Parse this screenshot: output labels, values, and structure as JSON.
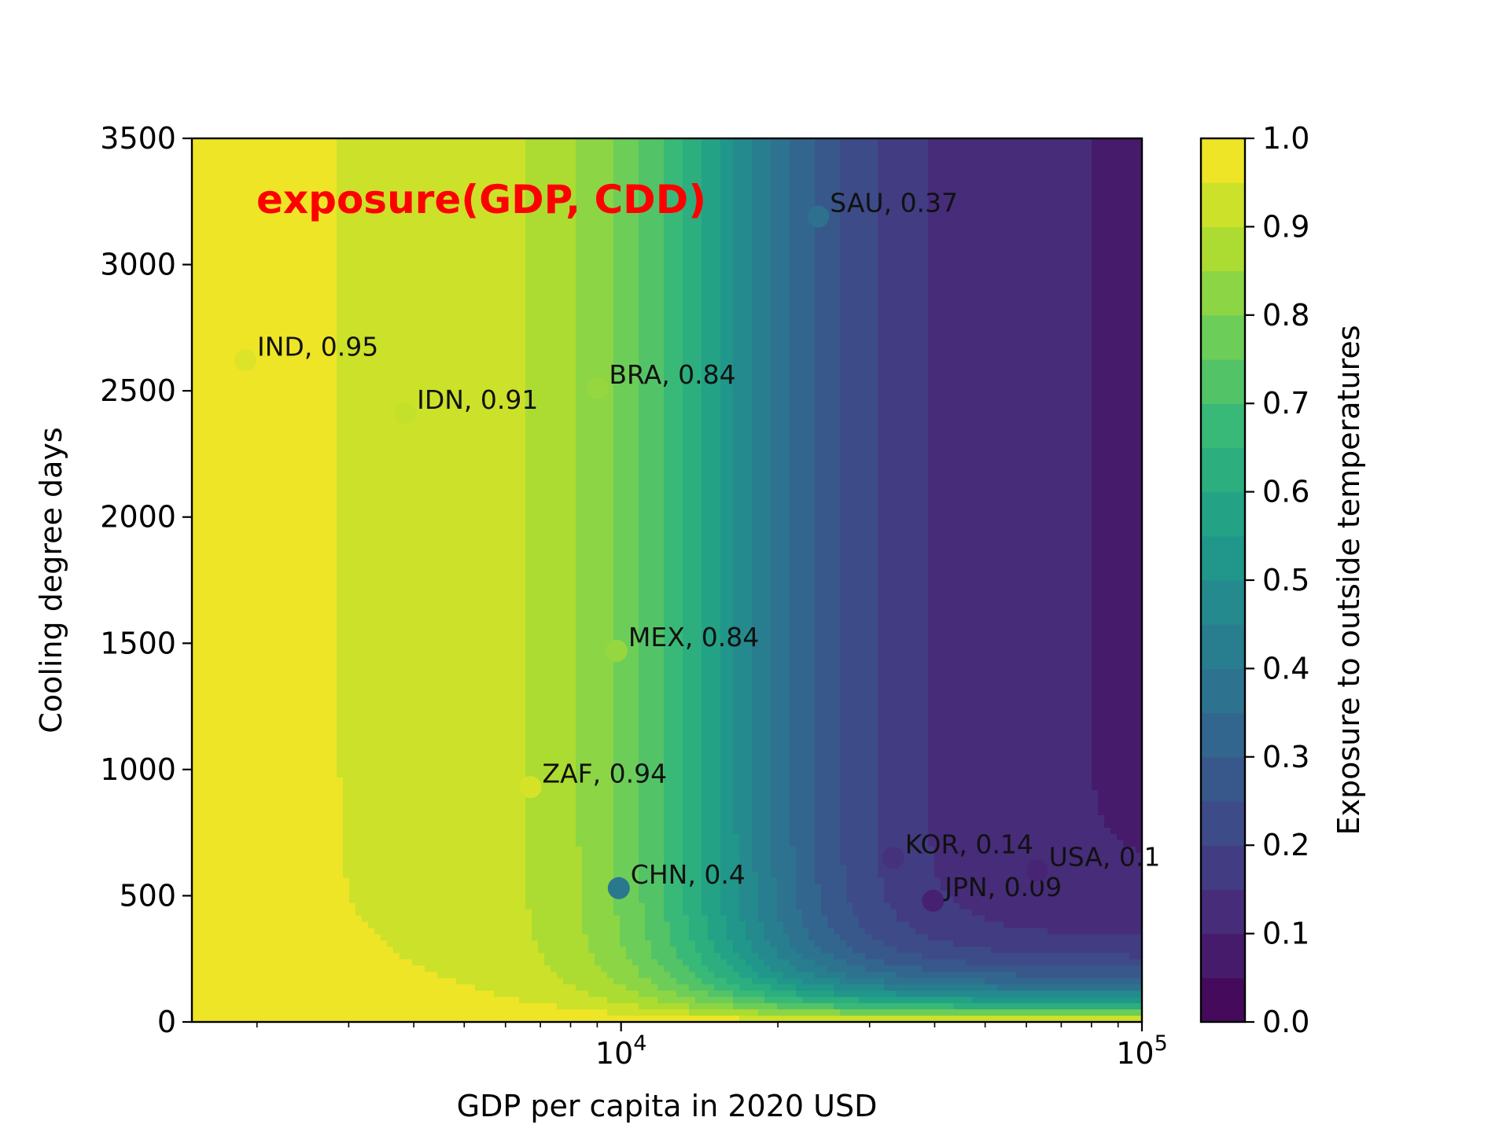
{
  "chart_data": {
    "type": "heatmap",
    "subtype": "filled-contour-with-scatter",
    "annotation": {
      "text": "exposure(GDP, CDD)",
      "color": "#ff0000"
    },
    "xlabel": "GDP per capita in 2020 USD",
    "ylabel": "Cooling degree days",
    "xscale": "log",
    "xlim": [
      1500,
      100000
    ],
    "ylim": [
      0,
      3500
    ],
    "x_ticks": [
      {
        "value": 10000,
        "base": "10",
        "exp": "4"
      },
      {
        "value": 100000,
        "base": "10",
        "exp": "5"
      }
    ],
    "y_ticks": [
      {
        "value": 0,
        "label": "0"
      },
      {
        "value": 500,
        "label": "500"
      },
      {
        "value": 1000,
        "label": "1000"
      },
      {
        "value": 1500,
        "label": "1500"
      },
      {
        "value": 2000,
        "label": "2000"
      },
      {
        "value": 2500,
        "label": "2500"
      },
      {
        "value": 3000,
        "label": "3000"
      },
      {
        "value": 3500,
        "label": "3500"
      }
    ],
    "colorbar": {
      "label": "Exposure to outside temperatures",
      "range": [
        0,
        1
      ],
      "colormap": "viridis",
      "levels": 20,
      "ticks": [
        {
          "value": 0.0,
          "label": "0.0"
        },
        {
          "value": 0.1,
          "label": "0.1"
        },
        {
          "value": 0.2,
          "label": "0.2"
        },
        {
          "value": 0.3,
          "label": "0.3"
        },
        {
          "value": 0.4,
          "label": "0.4"
        },
        {
          "value": 0.5,
          "label": "0.5"
        },
        {
          "value": 0.6,
          "label": "0.6"
        },
        {
          "value": 0.7,
          "label": "0.7"
        },
        {
          "value": 0.8,
          "label": "0.8"
        },
        {
          "value": 0.9,
          "label": "0.9"
        },
        {
          "value": 1.0,
          "label": "1.0"
        }
      ]
    },
    "points": [
      {
        "country": "IND",
        "gdp": 1900,
        "cdd": 2620,
        "exposure": 0.95,
        "label": "IND, 0.95"
      },
      {
        "country": "IDN",
        "gdp": 3850,
        "cdd": 2410,
        "exposure": 0.91,
        "label": "IDN, 0.91"
      },
      {
        "country": "BRA",
        "gdp": 9000,
        "cdd": 2510,
        "exposure": 0.84,
        "label": "BRA, 0.84"
      },
      {
        "country": "MEX",
        "gdp": 9800,
        "cdd": 1470,
        "exposure": 0.84,
        "label": "MEX, 0.84"
      },
      {
        "country": "ZAF",
        "gdp": 6700,
        "cdd": 930,
        "exposure": 0.94,
        "label": "ZAF, 0.94"
      },
      {
        "country": "CHN",
        "gdp": 9900,
        "cdd": 530,
        "exposure": 0.4,
        "label": "CHN, 0.4"
      },
      {
        "country": "SAU",
        "gdp": 23900,
        "cdd": 3190,
        "exposure": 0.37,
        "label": "SAU, 0.37"
      },
      {
        "country": "KOR",
        "gdp": 33300,
        "cdd": 650,
        "exposure": 0.14,
        "label": "KOR, 0.14"
      },
      {
        "country": "JPN",
        "gdp": 39700,
        "cdd": 480,
        "exposure": 0.09,
        "label": "JPN, 0.09"
      },
      {
        "country": "USA",
        "gdp": 62900,
        "cdd": 600,
        "exposure": 0.1,
        "label": "USA, 0.1"
      }
    ]
  }
}
